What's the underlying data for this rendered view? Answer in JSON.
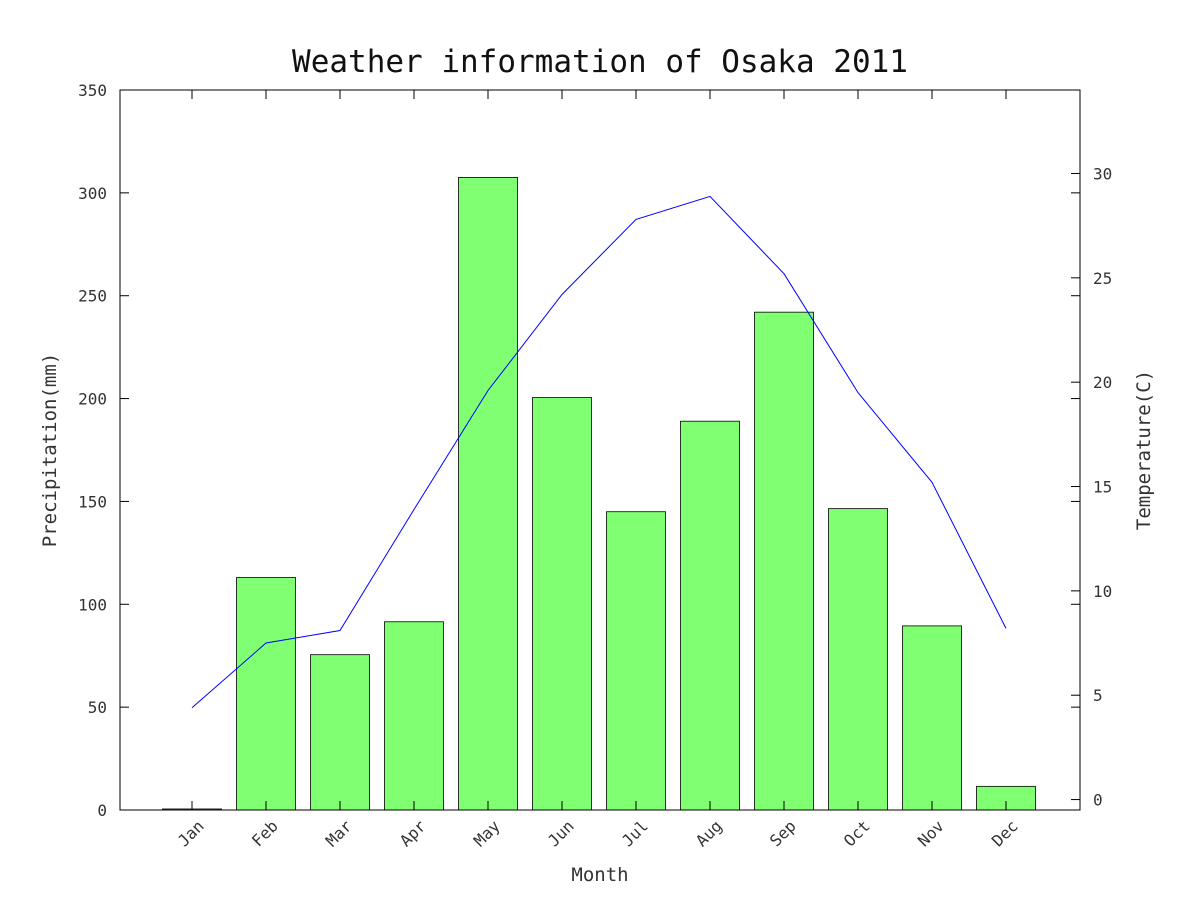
{
  "chart_data": {
    "type": "bar+line",
    "title": "Weather information of Osaka 2011",
    "xlabel": "Month",
    "ylabel_left": "Precipitation(mm)",
    "ylabel_right": "Temperature(C)",
    "categories": [
      "Jan",
      "Feb",
      "Mar",
      "Apr",
      "May",
      "Jun",
      "Jul",
      "Aug",
      "Sep",
      "Oct",
      "Nov",
      "Dec"
    ],
    "series": [
      {
        "name": "Precipitation(mm)",
        "type": "bar",
        "axis": "left",
        "color": "#80ff73",
        "values": [
          0.5,
          113,
          75.5,
          91.5,
          307.5,
          200.5,
          145,
          189,
          242,
          146.5,
          89.5,
          11.5
        ]
      },
      {
        "name": "Temperature(C)",
        "type": "line",
        "axis": "right",
        "color": "#0000ff",
        "values": [
          4.4,
          7.5,
          8.1,
          13.9,
          19.6,
          24.2,
          27.8,
          28.9,
          25.2,
          19.5,
          15.2,
          8.2
        ]
      }
    ],
    "ylim_left": [
      0,
      350
    ],
    "yticks_left": [
      0,
      50,
      100,
      150,
      200,
      250,
      300,
      350
    ],
    "ylim_right": [
      -0.5,
      34
    ],
    "yticks_right": [
      0,
      5,
      10,
      15,
      20,
      25,
      30
    ],
    "grid": false,
    "legend": "none"
  }
}
